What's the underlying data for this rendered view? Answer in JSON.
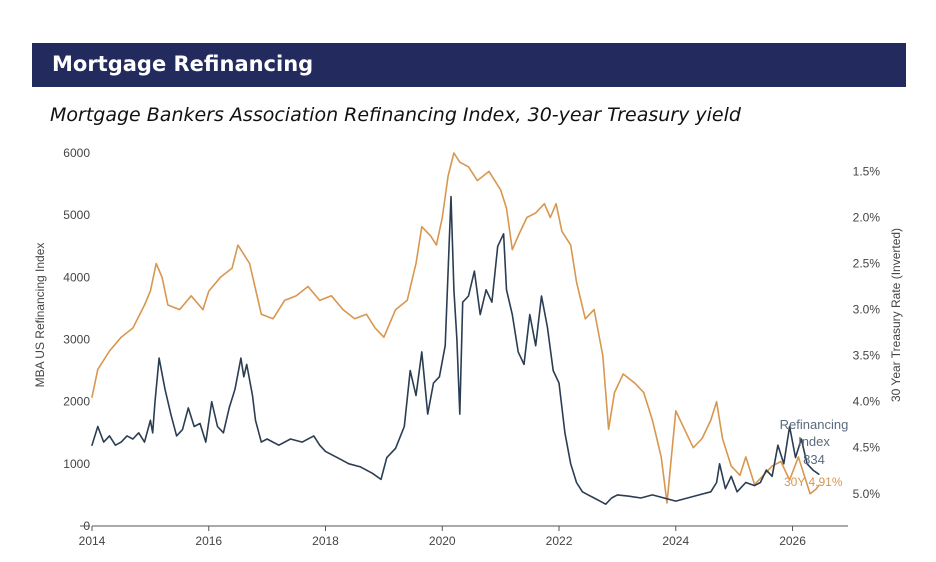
{
  "header": {
    "title": "Mortgage Refinancing",
    "subtitle": "Mortgage Bankers Association Refinancing Index, 30-year Treasury yield"
  },
  "colors": {
    "banner": "#222a5e",
    "refi_line": "#2b3d52",
    "yield_line": "#d8974f"
  },
  "chart_data": {
    "type": "line",
    "title": "",
    "xlabel": "",
    "ylabel": "MBA US Refinancing Index",
    "y2label": "30 Year Treasury Rate (Inverted)",
    "xlim": [
      2014,
      2026.95
    ],
    "ylim": [
      0,
      6000
    ],
    "y2lim": [
      1.3,
      5.35
    ],
    "y2_inverted": true,
    "x_ticks": [
      "2014",
      "2016",
      "2018",
      "2020",
      "2022",
      "2024",
      "2026"
    ],
    "y_ticks": [
      "0",
      "1000",
      "2000",
      "3000",
      "4000",
      "5000",
      "6000"
    ],
    "y2_ticks": [
      "1.5%",
      "2.0%",
      "2.5%",
      "3.0%",
      "3.5%",
      "4.0%",
      "4.5%",
      "5.0%"
    ],
    "grid": false,
    "series": [
      {
        "name": "Refinancing Index",
        "axis": "left",
        "color": "#2b3d52",
        "x": [
          2014.0,
          2014.1,
          2014.2,
          2014.3,
          2014.4,
          2014.5,
          2014.6,
          2014.7,
          2014.8,
          2014.9,
          2015.0,
          2015.04,
          2015.08,
          2015.15,
          2015.25,
          2015.35,
          2015.45,
          2015.55,
          2015.65,
          2015.75,
          2015.85,
          2015.95,
          2016.05,
          2016.15,
          2016.25,
          2016.35,
          2016.45,
          2016.55,
          2016.6,
          2016.65,
          2016.7,
          2016.75,
          2016.8,
          2016.9,
          2017.0,
          2017.2,
          2017.4,
          2017.6,
          2017.8,
          2017.9,
          2018.0,
          2018.2,
          2018.4,
          2018.6,
          2018.8,
          2018.95,
          2019.05,
          2019.2,
          2019.35,
          2019.45,
          2019.55,
          2019.65,
          2019.75,
          2019.85,
          2019.95,
          2020.05,
          2020.15,
          2020.2,
          2020.25,
          2020.3,
          2020.35,
          2020.45,
          2020.55,
          2020.65,
          2020.75,
          2020.85,
          2020.95,
          2021.05,
          2021.1,
          2021.2,
          2021.3,
          2021.4,
          2021.5,
          2021.6,
          2021.7,
          2021.8,
          2021.9,
          2022.0,
          2022.1,
          2022.2,
          2022.3,
          2022.4,
          2022.5,
          2022.6,
          2022.7,
          2022.8,
          2022.9,
          2023.0,
          2023.2,
          2023.4,
          2023.6,
          2023.8,
          2024.0,
          2024.2,
          2024.4,
          2024.6,
          2024.7,
          2024.75,
          2024.85,
          2024.95,
          2025.05,
          2025.2,
          2025.35,
          2025.45,
          2025.55,
          2025.65,
          2025.75,
          2025.85,
          2025.95,
          2026.05,
          2026.15,
          2026.25,
          2026.35,
          2026.45
        ],
        "values": [
          1300,
          1600,
          1350,
          1450,
          1300,
          1350,
          1450,
          1400,
          1500,
          1350,
          1700,
          1500,
          2000,
          2700,
          2200,
          1800,
          1450,
          1550,
          1900,
          1600,
          1650,
          1350,
          2000,
          1600,
          1500,
          1900,
          2200,
          2700,
          2400,
          2600,
          2350,
          2100,
          1700,
          1350,
          1400,
          1300,
          1400,
          1350,
          1450,
          1300,
          1200,
          1100,
          1000,
          950,
          850,
          750,
          1100,
          1250,
          1600,
          2500,
          2100,
          2800,
          1800,
          2300,
          2400,
          2900,
          5300,
          3800,
          3000,
          1800,
          3600,
          3700,
          4100,
          3400,
          3800,
          3600,
          4500,
          4700,
          3800,
          3400,
          2800,
          2600,
          3400,
          2900,
          3700,
          3200,
          2500,
          2300,
          1500,
          1000,
          700,
          550,
          500,
          450,
          400,
          350,
          450,
          500,
          480,
          450,
          500,
          450,
          400,
          450,
          500,
          550,
          700,
          1000,
          600,
          800,
          550,
          700,
          650,
          700,
          900,
          800,
          1300,
          1000,
          1600,
          1100,
          1400,
          1000,
          900,
          834
        ]
      },
      {
        "name": "30Y",
        "axis": "right",
        "color": "#d8974f",
        "x": [
          2014.0,
          2014.1,
          2014.3,
          2014.5,
          2014.7,
          2014.9,
          2015.0,
          2015.1,
          2015.2,
          2015.3,
          2015.5,
          2015.7,
          2015.9,
          2016.0,
          2016.2,
          2016.4,
          2016.5,
          2016.55,
          2016.7,
          2016.9,
          2017.1,
          2017.3,
          2017.5,
          2017.7,
          2017.9,
          2018.1,
          2018.3,
          2018.5,
          2018.7,
          2018.85,
          2019.0,
          2019.2,
          2019.4,
          2019.55,
          2019.65,
          2019.8,
          2019.9,
          2020.0,
          2020.1,
          2020.2,
          2020.3,
          2020.45,
          2020.6,
          2020.8,
          2021.0,
          2021.1,
          2021.2,
          2021.3,
          2021.45,
          2021.6,
          2021.75,
          2021.85,
          2021.95,
          2022.05,
          2022.2,
          2022.3,
          2022.45,
          2022.6,
          2022.75,
          2022.85,
          2022.95,
          2023.1,
          2023.3,
          2023.45,
          2023.6,
          2023.75,
          2023.85,
          2024.0,
          2024.15,
          2024.3,
          2024.45,
          2024.6,
          2024.7,
          2024.8,
          2024.95,
          2025.1,
          2025.2,
          2025.35,
          2025.5,
          2025.65,
          2025.8,
          2025.95,
          2026.1,
          2026.2,
          2026.3,
          2026.4,
          2026.45
        ],
        "values": [
          3.95,
          3.65,
          3.45,
          3.3,
          3.2,
          2.95,
          2.8,
          2.5,
          2.65,
          2.95,
          3.0,
          2.85,
          3.0,
          2.8,
          2.65,
          2.55,
          2.3,
          2.35,
          2.5,
          3.05,
          3.1,
          2.9,
          2.85,
          2.75,
          2.9,
          2.85,
          3.0,
          3.1,
          3.05,
          3.2,
          3.3,
          3.0,
          2.9,
          2.5,
          2.1,
          2.2,
          2.3,
          2.0,
          1.55,
          1.3,
          1.4,
          1.45,
          1.6,
          1.5,
          1.7,
          1.9,
          2.35,
          2.2,
          2.0,
          1.95,
          1.85,
          2.0,
          1.85,
          2.15,
          2.3,
          2.7,
          3.1,
          3.0,
          3.5,
          4.3,
          3.9,
          3.7,
          3.8,
          3.9,
          4.2,
          4.6,
          5.1,
          4.1,
          4.3,
          4.5,
          4.4,
          4.2,
          4.0,
          4.4,
          4.7,
          4.8,
          4.6,
          4.9,
          4.8,
          4.7,
          4.65,
          4.85,
          4.6,
          4.8,
          5.0,
          4.95,
          4.91
        ]
      }
    ],
    "annotations": {
      "refi_label_line1": "Refinancing",
      "refi_label_line2": "Index",
      "refi_value": "834",
      "yield_label": "30Y 4.91%"
    }
  }
}
